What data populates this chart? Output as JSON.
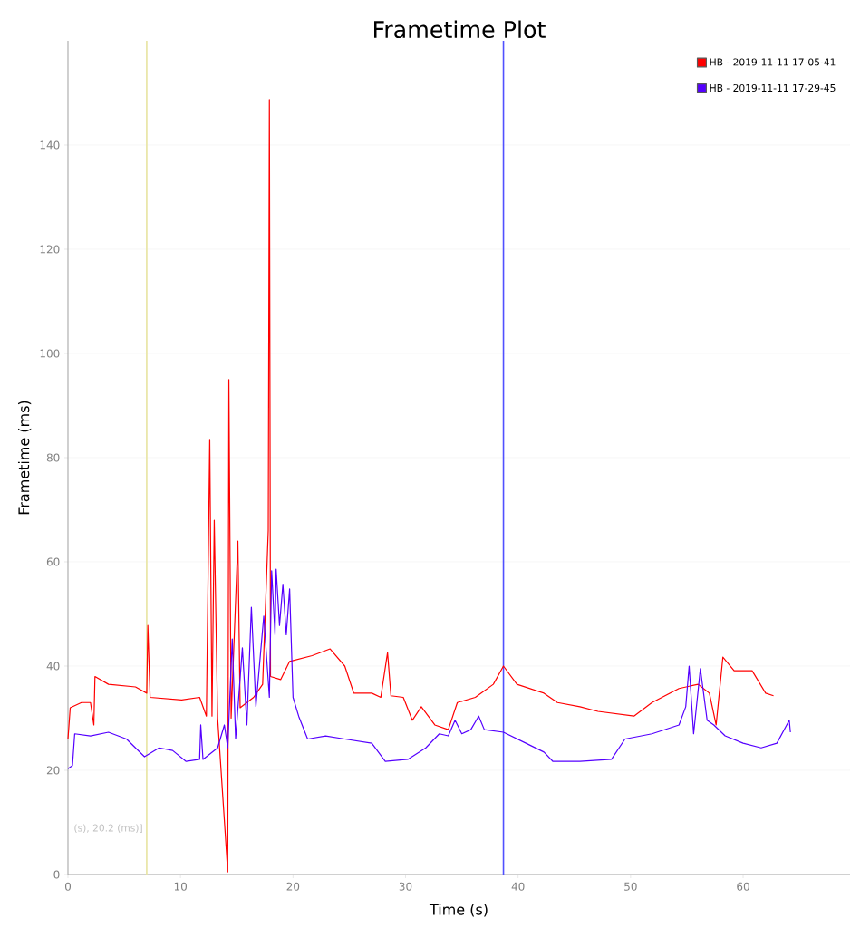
{
  "chart_data": {
    "type": "line",
    "title": "Frametime Plot",
    "xlabel": "Time (s)",
    "ylabel": "Frametime (ms)",
    "xlim": [
      0,
      69.5
    ],
    "ylim": [
      0,
      160
    ],
    "xticks": [
      0,
      10,
      20,
      30,
      40,
      50,
      60
    ],
    "yticks": [
      0,
      20,
      40,
      60,
      80,
      100,
      120,
      140
    ],
    "grid": "y",
    "legend": "top right",
    "marker": "none",
    "line_style": "solid",
    "annotations": [
      "(s), 20.2 (ms)]"
    ],
    "ref_lines": [
      {
        "axis": "x",
        "value": 7.0,
        "color": "#e8e4a0"
      },
      {
        "axis": "x",
        "value": 38.7,
        "color": "#5050ff"
      }
    ],
    "series": [
      {
        "name": "HB - 2019-11-11 17-05-41",
        "color": "#ff0000",
        "x": [
          0,
          0.2,
          1.2,
          2.0,
          2.3,
          2.4,
          3.6,
          6.0,
          7.0,
          7.1,
          7.3,
          10.1,
          11.7,
          12.3,
          12.6,
          12.8,
          13.0,
          13.3,
          14.2,
          14.3,
          14.5,
          15.1,
          15.3,
          16.5,
          17.3,
          17.8,
          17.9,
          18.0,
          18.9,
          19.7,
          21.7,
          23.3,
          24.6,
          25.4,
          27.0,
          27.8,
          28.4,
          28.7,
          29.8,
          30.6,
          31.4,
          32.6,
          33.8,
          34.6,
          36.2,
          37.8,
          38.7,
          39.9,
          42.3,
          43.5,
          45.5,
          47.1,
          50.3,
          51.9,
          54.3,
          56.0,
          57.0,
          57.6,
          58.2,
          59.2,
          60.8,
          62.0,
          62.7
        ],
        "values": [
          26,
          32,
          33,
          33,
          28.7,
          38,
          36.5,
          36,
          34.8,
          47.8,
          34,
          33.5,
          34,
          30.4,
          83.5,
          30.4,
          68,
          30,
          0.5,
          95,
          30,
          64,
          32,
          34,
          36.5,
          66,
          148.7,
          38,
          37.4,
          40.9,
          42,
          43.3,
          40,
          34.8,
          34.8,
          34,
          42.6,
          34.3,
          34,
          29.6,
          32.2,
          28.7,
          27.8,
          33,
          34,
          36.5,
          40,
          36.5,
          34.8,
          33,
          32.2,
          31.3,
          30.4,
          33,
          35.7,
          36.5,
          34.8,
          28.7,
          41.7,
          39.1,
          39.1,
          34.8,
          34.3
        ]
      },
      {
        "name": "HB - 2019-11-11 17-29-45",
        "color": "#5500ff",
        "x": [
          0,
          0.4,
          0.6,
          2.0,
          3.6,
          5.2,
          6.8,
          8.1,
          9.3,
          10.5,
          11.7,
          11.8,
          12.0,
          13.3,
          13.9,
          14.2,
          14.6,
          14.9,
          15.5,
          15.9,
          16.3,
          16.7,
          17.4,
          17.9,
          18.1,
          18.4,
          18.5,
          18.8,
          19.1,
          19.4,
          19.7,
          20.0,
          20.5,
          21.3,
          22.9,
          24.6,
          27.0,
          28.2,
          30.2,
          31.8,
          33.0,
          33.8,
          34.4,
          35.0,
          35.8,
          36.5,
          37.0,
          38.7,
          40.7,
          42.3,
          43.1,
          45.5,
          48.3,
          49.5,
          51.9,
          54.3,
          54.9,
          55.2,
          55.6,
          56.2,
          56.8,
          57.4,
          58.4,
          60.0,
          61.6,
          63.0,
          64.1,
          64.2
        ],
        "values": [
          20.3,
          20.9,
          27,
          26.6,
          27.3,
          26,
          22.6,
          24.3,
          23.8,
          21.7,
          22.1,
          28.7,
          22.1,
          24.3,
          28.7,
          24.3,
          45.2,
          26,
          43.5,
          28.7,
          51.3,
          32.2,
          49.6,
          34,
          58.3,
          46,
          58.6,
          47.8,
          55.7,
          46,
          54.8,
          34,
          30.4,
          26,
          26.6,
          26,
          25.2,
          21.7,
          22.1,
          24.3,
          27,
          26.6,
          29.6,
          27,
          27.8,
          30.4,
          27.8,
          27.3,
          25.2,
          23.5,
          21.7,
          21.7,
          22.1,
          26,
          27,
          28.7,
          32.2,
          40,
          27,
          39.5,
          29.6,
          28.7,
          26.6,
          25.2,
          24.3,
          25.2,
          29.6,
          27.3
        ]
      }
    ]
  }
}
